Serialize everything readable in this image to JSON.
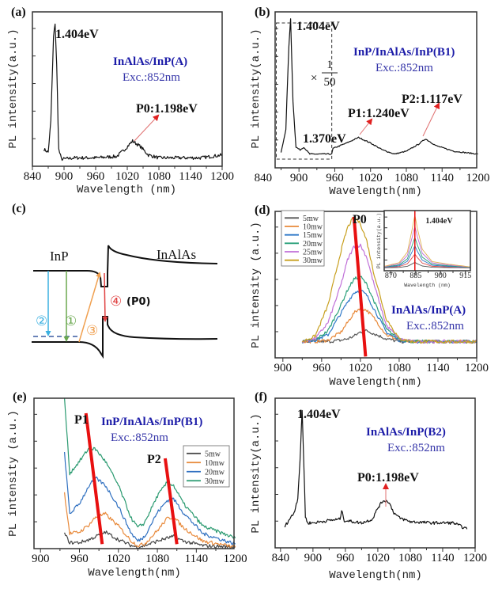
{
  "chart_data": [
    {
      "id": "a",
      "panel_label": "(a)",
      "type": "line",
      "xlabel": "Wavelength (nm)",
      "ylabel": "PL intensity(a.u.)",
      "xlim": [
        840,
        1200
      ],
      "ylim": [
        -0.02,
        1.08
      ],
      "xticks": [
        840,
        900,
        960,
        1020,
        1080,
        1140,
        1200
      ],
      "sample": "InAlAs/InP(A)",
      "excitation": "Exc.:852nm",
      "annotations": [
        "1.404eV",
        "P0:1.198eV"
      ],
      "series": [
        {
          "color": "#111111",
          "points": [
            [
              862,
              0.1
            ],
            [
              870,
              0.08
            ],
            [
              875,
              0.3
            ],
            [
              880,
              0.9
            ],
            [
              883,
              1.0
            ],
            [
              886,
              0.7
            ],
            [
              890,
              0.1
            ],
            [
              895,
              0.03
            ],
            [
              920,
              0.04
            ],
            [
              960,
              0.04
            ],
            [
              1000,
              0.05
            ],
            [
              1015,
              0.1
            ],
            [
              1030,
              0.16
            ],
            [
              1045,
              0.12
            ],
            [
              1060,
              0.06
            ],
            [
              1080,
              0.04
            ],
            [
              1120,
              0.04
            ],
            [
              1160,
              0.04
            ],
            [
              1200,
              0.06
            ]
          ]
        }
      ]
    },
    {
      "id": "b",
      "panel_label": "(b)",
      "type": "line",
      "xlabel": "Wavelength(nm)",
      "ylabel": "PL intensity(a.u.)",
      "xlim": [
        860,
        1198
      ],
      "ylim": [
        -0.08,
        1.05
      ],
      "xticks": [
        840,
        900,
        960,
        1020,
        1080,
        1140,
        1200
      ],
      "sample": "InP/InAlAs/InP(B1)",
      "excitation": "Exc.:852nm",
      "scale_note": {
        "times": "×",
        "numerator": "1",
        "denominator": "50",
        "range_nm": [
          862,
          955
        ]
      },
      "annotations": [
        "1.404eV",
        "1.370eV",
        "P1:1.240eV",
        "P2:1.117eV"
      ],
      "series": [
        {
          "color": "#111111",
          "points": [
            [
              870,
              0.03
            ],
            [
              878,
              0.2
            ],
            [
              883,
              0.8
            ],
            [
              886,
              1.0
            ],
            [
              890,
              0.4
            ],
            [
              895,
              0.07
            ],
            [
              902,
              0.05
            ],
            [
              908,
              0.07
            ],
            [
              914,
              0.04
            ],
            [
              918,
              0.02
            ],
            [
              955,
              0.02
            ],
            [
              957,
              0.06
            ],
            [
              980,
              0.1
            ],
            [
              1000,
              0.14
            ],
            [
              1020,
              0.1
            ],
            [
              1040,
              0.05
            ],
            [
              1060,
              0.02
            ],
            [
              1080,
              0.04
            ],
            [
              1100,
              0.09
            ],
            [
              1112,
              0.13
            ],
            [
              1130,
              0.08
            ],
            [
              1160,
              0.04
            ],
            [
              1200,
              0.02
            ]
          ]
        }
      ]
    },
    {
      "id": "d",
      "panel_label": "(d)",
      "type": "line",
      "xlabel": "Wavelength(nm)",
      "ylabel": "PL intensity (a.u.)",
      "xlim": [
        888,
        1200
      ],
      "ylim": [
        -0.04,
        1.04
      ],
      "xticks": [
        900,
        960,
        1020,
        1080,
        1140,
        1200
      ],
      "sample": "InAlAs/InP(A)",
      "excitation": "Exc.:852nm",
      "annotations": [
        "P0"
      ],
      "legend": "top-left",
      "trend_line": {
        "color": "#e81010",
        "from": [
          1010,
          1.0
        ],
        "to": [
          1028,
          -0.03
        ]
      },
      "x": [
        930,
        950,
        970,
        990,
        1000,
        1010,
        1020,
        1030,
        1040,
        1060,
        1080,
        1100,
        1140,
        1200
      ],
      "series": [
        {
          "name": "5mw",
          "color": "#555555",
          "values": [
            0.08,
            0.08,
            0.08,
            0.09,
            0.1,
            0.12,
            0.15,
            0.16,
            0.14,
            0.1,
            0.08,
            0.08,
            0.08,
            0.08
          ]
        },
        {
          "name": "10mw",
          "color": "#e8893a",
          "values": [
            0.08,
            0.08,
            0.09,
            0.15,
            0.22,
            0.29,
            0.33,
            0.31,
            0.26,
            0.13,
            0.09,
            0.08,
            0.08,
            0.08
          ]
        },
        {
          "name": "15mw",
          "color": "#2e78c8",
          "values": [
            0.08,
            0.09,
            0.13,
            0.29,
            0.37,
            0.44,
            0.46,
            0.42,
            0.33,
            0.15,
            0.09,
            0.08,
            0.08,
            0.08
          ]
        },
        {
          "name": "20mw",
          "color": "#2aa07a",
          "values": [
            0.08,
            0.09,
            0.16,
            0.35,
            0.46,
            0.54,
            0.56,
            0.5,
            0.39,
            0.17,
            0.1,
            0.08,
            0.08,
            0.08
          ]
        },
        {
          "name": "25mw",
          "color": "#c070d8",
          "values": [
            0.08,
            0.1,
            0.22,
            0.5,
            0.68,
            0.78,
            0.79,
            0.7,
            0.52,
            0.2,
            0.1,
            0.08,
            0.08,
            0.08
          ]
        },
        {
          "name": "30mw",
          "color": "#c8a020",
          "values": [
            0.08,
            0.12,
            0.35,
            0.75,
            0.92,
            1.0,
            0.95,
            0.82,
            0.6,
            0.25,
            0.1,
            0.08,
            0.08,
            0.08
          ]
        }
      ],
      "inset": {
        "xlabel": "Wavelength (nm)",
        "ylabel": "PL intensity(a.u.)",
        "xlim": [
          866,
          918
        ],
        "ylim": [
          0,
          1.08
        ],
        "xticks": [
          870,
          885,
          900,
          915
        ],
        "annotation": "1.404eV",
        "marker_line": {
          "color": "#e81010",
          "x": 884.5
        },
        "x": [
          866,
          875,
          880,
          883,
          884.5,
          886,
          889,
          895,
          905,
          918
        ],
        "series": [
          {
            "name": "5mw",
            "color": "#555555",
            "values": [
              0.053,
              0.06,
              0.08,
              0.125,
              0.15,
              0.125,
              0.085,
              0.062,
              0.057,
              0.052
            ]
          },
          {
            "name": "10mw",
            "color": "#e05050",
            "values": [
              0.058,
              0.075,
              0.125,
              0.238,
              0.3,
              0.238,
              0.138,
              0.08,
              0.068,
              0.055
            ]
          },
          {
            "name": "15mw",
            "color": "#2e78c8",
            "values": [
              0.062,
              0.09,
              0.17,
              0.35,
              0.45,
              0.35,
              0.19,
              0.098,
              0.078,
              0.058
            ]
          },
          {
            "name": "20mw",
            "color": "#2aa07a",
            "values": [
              0.067,
              0.105,
              0.215,
              0.463,
              0.6,
              0.463,
              0.243,
              0.116,
              0.089,
              0.061
            ]
          },
          {
            "name": "25mw",
            "color": "#c070d8",
            "values": [
              0.073,
              0.125,
              0.275,
              0.613,
              0.8,
              0.613,
              0.313,
              0.14,
              0.103,
              0.065
            ]
          },
          {
            "name": "30mw",
            "color": "#e0b050",
            "values": [
              0.079,
              0.145,
              0.335,
              0.763,
              1.0,
              0.763,
              0.383,
              0.164,
              0.117,
              0.069
            ]
          }
        ]
      }
    },
    {
      "id": "e",
      "panel_label": "(e)",
      "type": "line",
      "xlabel": "Wavelength(nm)",
      "ylabel": "PL intensity (a.u.)",
      "xlim": [
        890,
        1198
      ],
      "ylim": [
        0,
        1.0
      ],
      "xticks": [
        900,
        960,
        1020,
        1080,
        1140,
        1200
      ],
      "sample": "InP/InAlAs/InP(B1)",
      "excitation": "Exc.:852nm",
      "annotations": [
        "P1",
        "P2"
      ],
      "legend": "right",
      "trend_lines": [
        {
          "color": "#e81010",
          "from": [
            970,
            0.9
          ],
          "to": [
            995,
            0.03
          ]
        },
        {
          "color": "#e81010",
          "from": [
            1092,
            0.6
          ],
          "to": [
            1110,
            0.03
          ]
        }
      ],
      "x": [
        937,
        945,
        960,
        975,
        985,
        1000,
        1020,
        1040,
        1050,
        1060,
        1080,
        1095,
        1105,
        1120,
        1150,
        1200
      ],
      "series": [
        {
          "name": "5mw",
          "color": "#444444",
          "values": [
            0.1,
            0.04,
            0.04,
            0.06,
            0.08,
            0.11,
            0.06,
            0.02,
            0.01,
            0.02,
            0.05,
            0.07,
            0.08,
            0.05,
            0.02,
            0.01
          ]
        },
        {
          "name": "10mw",
          "color": "#e8893a",
          "values": [
            0.37,
            0.1,
            0.11,
            0.16,
            0.21,
            0.23,
            0.15,
            0.05,
            0.02,
            0.03,
            0.12,
            0.2,
            0.21,
            0.14,
            0.05,
            0.01
          ]
        },
        {
          "name": "20mw",
          "color": "#2e6fc0",
          "values": [
            0.64,
            0.23,
            0.3,
            0.42,
            0.47,
            0.42,
            0.28,
            0.1,
            0.05,
            0.08,
            0.24,
            0.32,
            0.33,
            0.24,
            0.1,
            0.03
          ]
        },
        {
          "name": "30mw",
          "color": "#2a9a70",
          "values": [
            1.0,
            0.5,
            0.58,
            0.67,
            0.66,
            0.58,
            0.42,
            0.2,
            0.14,
            0.17,
            0.35,
            0.44,
            0.42,
            0.3,
            0.15,
            0.07
          ]
        }
      ]
    },
    {
      "id": "f",
      "panel_label": "(f)",
      "type": "line",
      "xlabel": "Wavelength(nm)",
      "ylabel": "PL intensity(a.u.)",
      "xlim": [
        830,
        1200
      ],
      "ylim": [
        -0.1,
        1.1
      ],
      "xticks": [
        840,
        900,
        960,
        1020,
        1080,
        1140,
        1200
      ],
      "sample": "InAlAs/InP(B2)",
      "excitation": "Exc.:852nm",
      "annotations": [
        "1.404eV",
        "P0:1.198eV"
      ],
      "series": [
        {
          "color": "#111111",
          "points": [
            [
              848,
              0.07
            ],
            [
              855,
              0.12
            ],
            [
              865,
              0.18
            ],
            [
              872,
              0.3
            ],
            [
              876,
              0.6
            ],
            [
              880,
              1.0
            ],
            [
              883,
              0.6
            ],
            [
              886,
              0.15
            ],
            [
              890,
              0.1
            ],
            [
              900,
              0.1
            ],
            [
              930,
              0.12
            ],
            [
              950,
              0.13
            ],
            [
              953,
              0.2
            ],
            [
              958,
              0.12
            ],
            [
              990,
              0.1
            ],
            [
              1010,
              0.13
            ],
            [
              1020,
              0.22
            ],
            [
              1030,
              0.28
            ],
            [
              1040,
              0.27
            ],
            [
              1050,
              0.18
            ],
            [
              1060,
              0.14
            ],
            [
              1080,
              0.11
            ],
            [
              1120,
              0.1
            ],
            [
              1160,
              0.1
            ],
            [
              1185,
              0.05
            ]
          ]
        }
      ]
    }
  ],
  "diagram_c": {
    "panel_label": "(c)",
    "left_material": "InP",
    "right_material": "InAlAs",
    "transitions": [
      {
        "label": "①",
        "color": "#6aa84f"
      },
      {
        "label": "②",
        "color": "#3bb0e0"
      },
      {
        "label": "③",
        "color": "#f0a050"
      },
      {
        "label": "④",
        "color": "#e04040"
      }
    ],
    "p0_label": "(P0)"
  }
}
